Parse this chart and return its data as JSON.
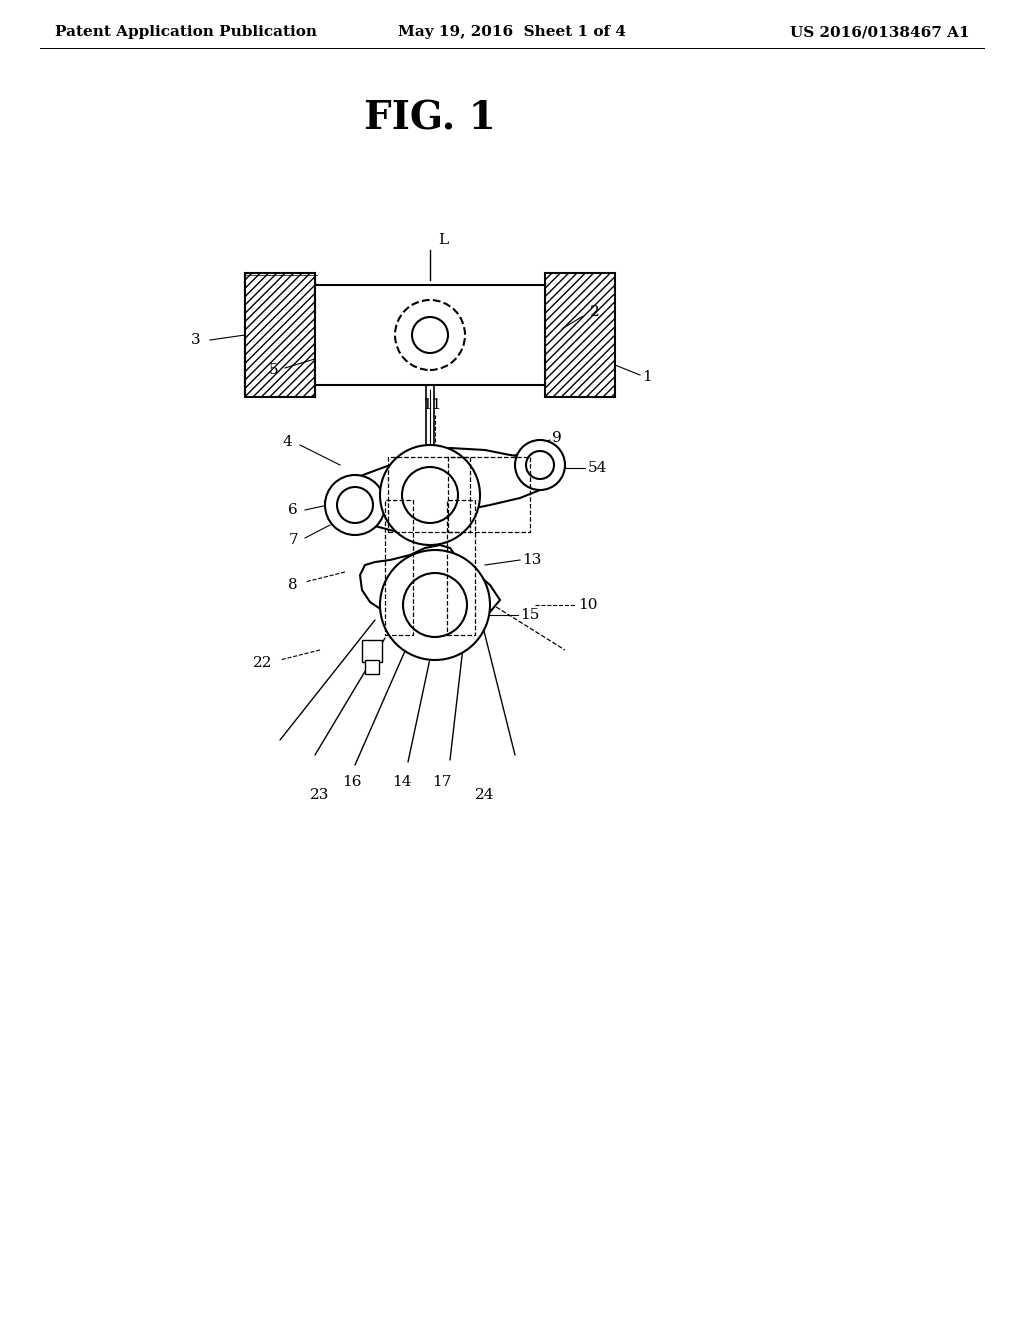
{
  "background_color": "#ffffff",
  "header_left": "Patent Application Publication",
  "header_center": "May 19, 2016  Sheet 1 of 4",
  "header_right": "US 2016/0138467 A1",
  "fig_title": "FIG. 1",
  "header_fontsize": 11,
  "title_fontsize": 28,
  "line_color": "#000000",
  "hatch_color": "#000000",
  "dashed_color": "#555555"
}
